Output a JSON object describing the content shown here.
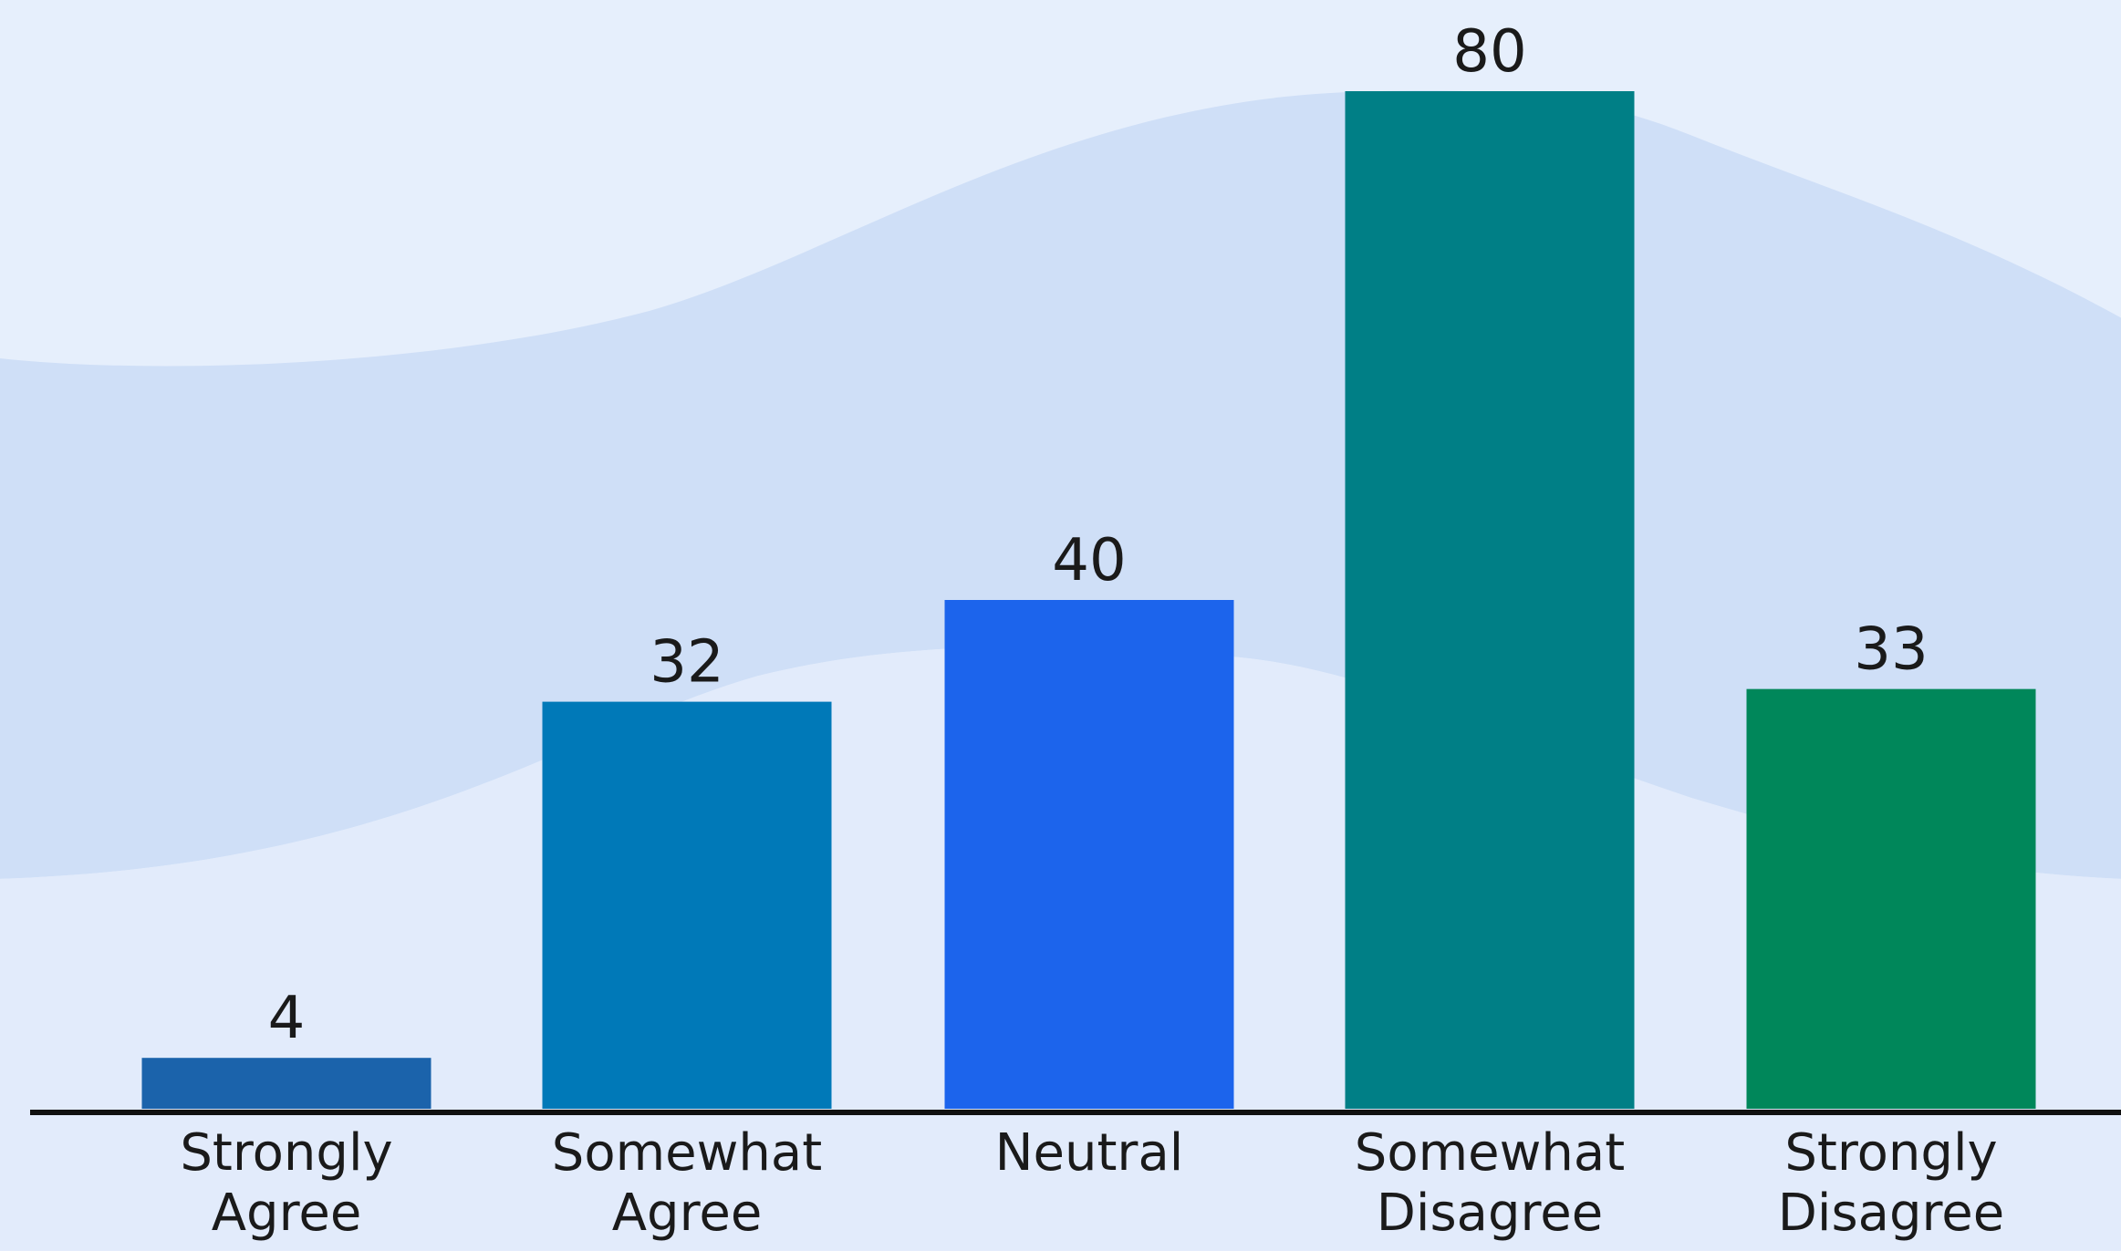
{
  "chart_data": {
    "type": "bar",
    "categories": [
      "Strongly Agree",
      "Somewhat Agree",
      "Neutral",
      "Somewhat Disagree",
      "Strongly Disagree"
    ],
    "values": [
      4,
      32,
      40,
      80,
      33
    ],
    "colors": [
      "#1b63ab",
      "#0079b8",
      "#1c64ec",
      "#007f86",
      "#00875a"
    ]
  }
}
